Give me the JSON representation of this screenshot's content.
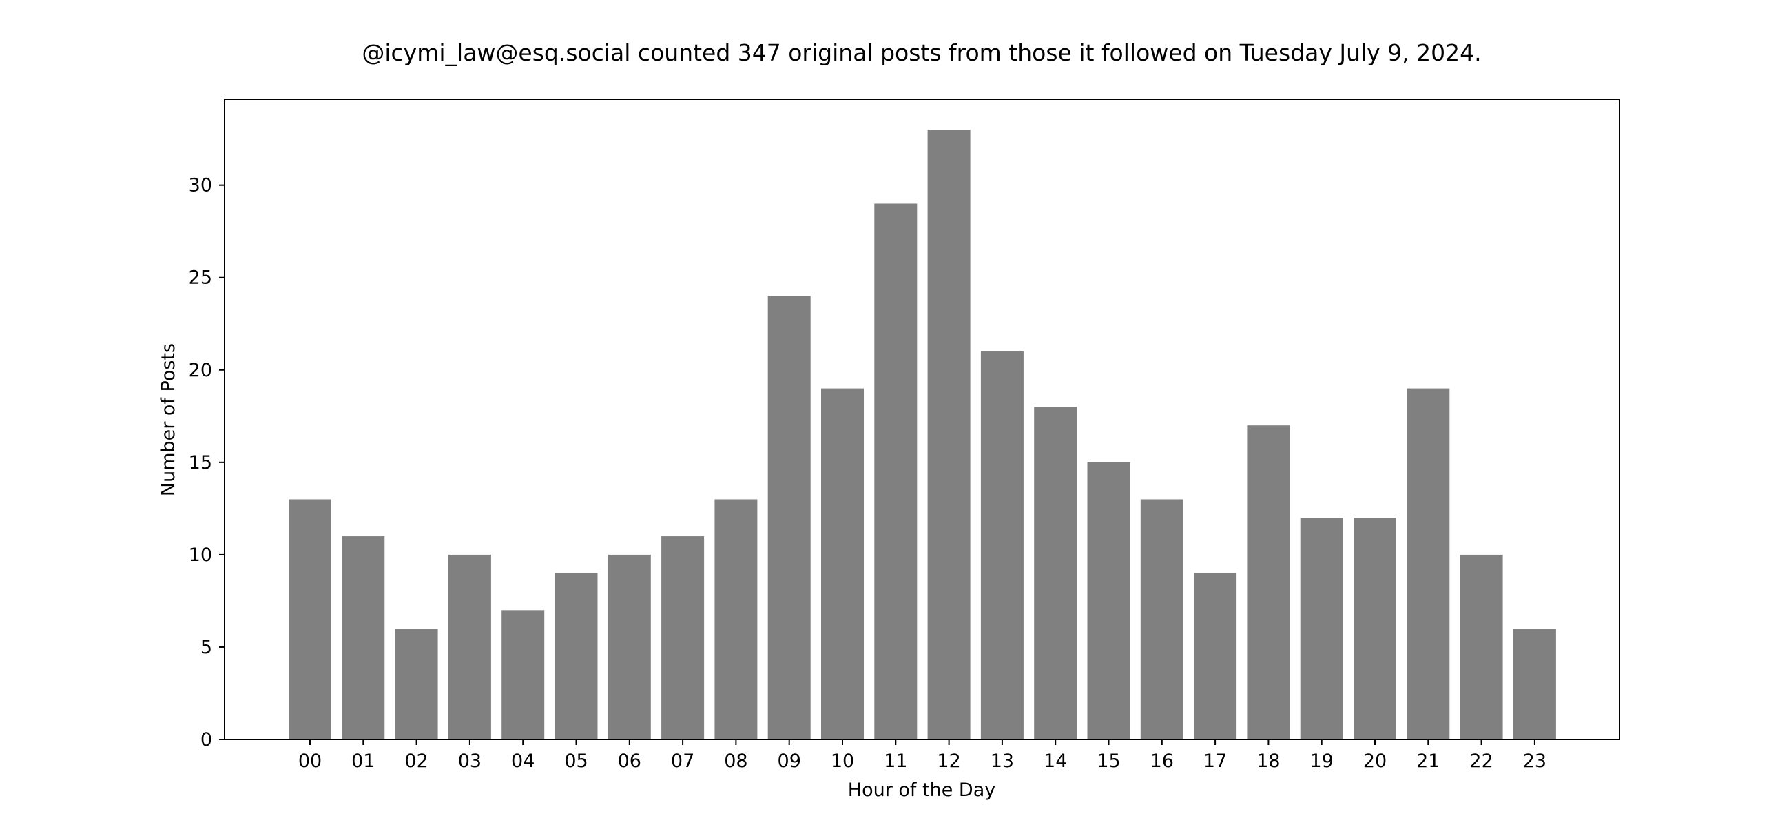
{
  "chart_data": {
    "type": "bar",
    "title": "@icymi_law@esq.social counted 347 original posts from those it followed on Tuesday July 9, 2024.",
    "xlabel": "Hour of the Day",
    "ylabel": "Number of Posts",
    "categories": [
      "00",
      "01",
      "02",
      "03",
      "04",
      "05",
      "06",
      "07",
      "08",
      "09",
      "10",
      "11",
      "12",
      "13",
      "14",
      "15",
      "16",
      "17",
      "18",
      "19",
      "20",
      "21",
      "22",
      "23"
    ],
    "values": [
      13,
      11,
      6,
      10,
      7,
      9,
      10,
      11,
      13,
      24,
      19,
      29,
      33,
      21,
      18,
      15,
      13,
      9,
      17,
      12,
      12,
      19,
      10,
      6
    ],
    "ylim": [
      0,
      34.65
    ],
    "yticks": [
      0,
      5,
      10,
      15,
      20,
      25,
      30
    ],
    "bar_color": "#808080",
    "grid": false,
    "legend": false
  }
}
